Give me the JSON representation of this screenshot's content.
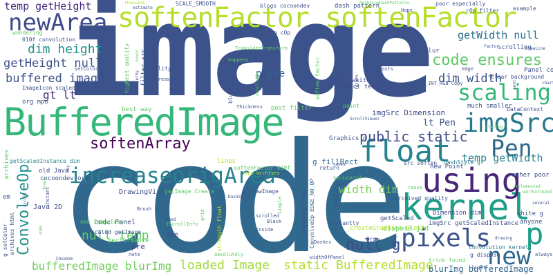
{
  "words": [
    {
      "text": "image",
      "color": "#3b528b"
    },
    {
      "text": "code",
      "color": "#31688e"
    },
    {
      "text": "softenFactor softenFactor",
      "color": "#b5de2b"
    },
    {
      "text": "BufferedImage",
      "color": "#35b779"
    },
    {
      "text": "increaseorigArea",
      "color": "#26828e"
    },
    {
      "text": "kernel",
      "color": "#1f9e89"
    },
    {
      "text": "newArea",
      "color": "#3e4a89"
    },
    {
      "text": "float",
      "color": "#26828e"
    },
    {
      "text": "imgSrc",
      "color": "#2a788e"
    },
    {
      "text": "scaling",
      "color": "#35b779"
    },
    {
      "text": "using",
      "color": "#482878"
    },
    {
      "text": "pixels",
      "color": "#3b528b"
    },
    {
      "text": "new",
      "color": "#31688e"
    },
    {
      "text": "p",
      "color": "#1f9e89"
    },
    {
      "text": "softenArray",
      "color": "#440154"
    },
    {
      "text": "Pen",
      "color": "#31688e"
    },
    {
      "text": "ConvolveOp",
      "color": "#21918c"
    },
    {
      "text": "public static",
      "color": "#3e4a89"
    },
    {
      "text": "getHeight null",
      "color": "#3b528b"
    },
    {
      "text": "temp getHeight",
      "color": "#472d7b"
    },
    {
      "text": "buffered image",
      "color": "#3b528b"
    },
    {
      "text": "dim height",
      "color": "#21918c"
    },
    {
      "text": "code ensures",
      "color": "#5ec962"
    },
    {
      "text": "getWidth null",
      "color": "#2c728e"
    },
    {
      "text": "dim width",
      "color": "#3b528b"
    },
    {
      "text": "temp getWidth",
      "color": "#26828e"
    },
    {
      "text": "null temp",
      "color": "#5ec962"
    },
    {
      "text": "width dim",
      "color": "#7ad151"
    },
    {
      "text": "bufferedImage blurImg",
      "color": "#6ece58"
    },
    {
      "text": "loaded Image",
      "color": "#a0da39"
    },
    {
      "text": "static BufferedImage",
      "color": "#b5de2b"
    },
    {
      "text": "blurImg bufferedImage",
      "color": "#31688e"
    },
    {
      "text": "null g",
      "color": "#3e4a89"
    },
    {
      "text": "gt lt",
      "color": "#482878"
    },
    {
      "text": "lt Pen",
      "color": "#3b528b"
    },
    {
      "text": "p pre",
      "color": "#31688e"
    },
    {
      "text": "code Panel",
      "color": "#3e4a89"
    },
    {
      "text": "DrawingVisual",
      "color": "#3b528b"
    },
    {
      "text": "imgSrc Dimension",
      "color": "#3e4a89"
    },
    {
      "text": "Panel code",
      "color": "#3e4a89"
    },
    {
      "text": "g fillRect",
      "color": "#31688e"
    },
    {
      "text": "Java 2D",
      "color": "#3e4a89"
    },
    {
      "text": "pre",
      "color": "#3e4a89"
    },
    {
      "text": "use",
      "color": "#3e4a89"
    },
    {
      "text": "Color white",
      "color": "#3e4a89"
    },
    {
      "text": "fillRect temp",
      "color": "#3e4a89"
    },
    {
      "text": "Graphics g",
      "color": "#3b528b"
    },
    {
      "text": "dispose j2d",
      "color": "#5ec962"
    },
    {
      "text": "Dimension dim",
      "color": "#3e4a89"
    },
    {
      "text": "old Java",
      "color": "#3e4a89"
    },
    {
      "text": "archives",
      "color": "#5ec962"
    },
    {
      "text": "cocoondev org",
      "color": "#3b528b"
    },
    {
      "text": "getScaledInstance dim",
      "color": "#26828e"
    },
    {
      "text": "getScaled",
      "color": "#3b528b"
    },
    {
      "text": "new Point",
      "color": "#3b528b"
    },
    {
      "text": "rather poor",
      "color": "#3b528b"
    },
    {
      "text": "white g",
      "color": "#3b528b"
    },
    {
      "text": "anyone",
      "color": "#3b528b"
    },
    {
      "text": "imgSrc getScaledInstance",
      "color": "#3b528b"
    },
    {
      "text": "convolution kernel",
      "color": "#2a788e"
    },
    {
      "text": "src soften",
      "color": "#3b528b"
    },
    {
      "text": "DashStyle g",
      "color": "#2a788e"
    },
    {
      "text": "much smaller",
      "color": "#3b528b"
    },
    {
      "text": "DataContext",
      "color": "#3b528b"
    },
    {
      "text": "createGraphics Clear",
      "color": "#b5de2b"
    },
    {
      "text": "scaled getImage",
      "color": "#3b528b"
    },
    {
      "text": "new ImageIcon",
      "color": "#5ec962"
    },
    {
      "text": "performance",
      "color": "#5ec962"
    },
    {
      "text": "trick found",
      "color": "#5ec962"
    },
    {
      "text": "g dispose",
      "color": "#3b528b"
    },
    {
      "text": "insane",
      "color": "#3b528b"
    },
    {
      "text": "widthOfPanel",
      "color": "#3b528b"
    },
    {
      "text": "Draw",
      "color": "#3b528b"
    },
    {
      "text": "Dashes",
      "color": "#3b528b"
    },
    {
      "text": "instantly",
      "color": "#3b528b"
    },
    {
      "text": "perceived quality",
      "color": "#3b528b"
    },
    {
      "text": "return",
      "color": "#3b528b"
    },
    {
      "text": "want",
      "color": "#3b528b"
    },
    {
      "text": "reuse",
      "color": "#5ec962"
    },
    {
      "text": "paint",
      "color": "#5ec962"
    },
    {
      "text": "best way",
      "color": "#5ec962"
    },
    {
      "text": "post filter",
      "color": "#5ec962"
    },
    {
      "text": "Thickness",
      "color": "#3b528b"
    },
    {
      "text": "org mpo",
      "color": "#3b528b"
    },
    {
      "text": "quality",
      "color": "#3b528b"
    },
    {
      "text": "decreased",
      "color": "#3b528b"
    },
    {
      "text": "ImageIcon scaled",
      "color": "#3b528b"
    },
    {
      "text": "setColor Color",
      "color": "#3b528b"
    },
    {
      "text": "010f convolution",
      "color": "#3b528b"
    },
    {
      "text": "wondering",
      "color": "#5ec962"
    },
    {
      "text": "return cOp",
      "color": "#3b528b"
    },
    {
      "text": "SCALE_SMOOTH",
      "color": "#3b528b"
    },
    {
      "text": "blogs cocoondev",
      "color": "#3b528b"
    },
    {
      "text": "dash pattern",
      "color": "#3b528b"
    },
    {
      "text": "poor especially",
      "color": "#3b528b"
    },
    {
      "text": "cOp filter",
      "color": "#3b528b"
    },
    {
      "text": "example",
      "color": "#3b528b"
    },
    {
      "text": "Hope",
      "color": "#3b528b"
    },
    {
      "text": "estimate",
      "color": "#3b528b"
    },
    {
      "text": "thousand",
      "color": "#b5de2b"
    },
    {
      "text": "PenUsingDashPatterns",
      "color": "#5ec962"
    },
    {
      "text": "TranslateTransform",
      "color": "#5ec962"
    },
    {
      "text": "blur",
      "color": "#3b528b"
    },
    {
      "text": "scrolling",
      "color": "#3b528b"
    },
    {
      "text": "DrawLine",
      "color": "#3b528b"
    },
    {
      "text": "Clear background",
      "color": "#3b528b"
    },
    {
      "text": "TYPE_INT_RGB Copy",
      "color": "#3b528b"
    },
    {
      "text": "hosts",
      "color": "#3b528b"
    },
    {
      "text": "edge",
      "color": "#3b528b"
    },
    {
      "text": "factor",
      "color": "#3b528b"
    },
    {
      "text": "chart",
      "color": "#3b528b"
    },
    {
      "text": "sent",
      "color": "#3b528b"
    },
    {
      "text": "happens",
      "color": "#5ec962"
    },
    {
      "text": "softenFactor 010f",
      "color": "#5ec962"
    },
    {
      "text": "lines",
      "color": "#b5de2b"
    },
    {
      "text": "ScrollViewer",
      "color": "#3b528b"
    },
    {
      "text": "seems",
      "color": "#3b528b"
    },
    {
      "text": "placing",
      "color": "#5ec962"
    },
    {
      "text": "return",
      "color": "#3b528b"
    },
    {
      "text": "Brush",
      "color": "#3b528b"
    },
    {
      "text": "getImage Create",
      "color": "#5ec962"
    },
    {
      "text": "mpo archives",
      "color": "#b5de2b"
    },
    {
      "text": "g drawImage",
      "color": "#3b528b"
    },
    {
      "text": "DashStyle",
      "color": "#3b528b"
    },
    {
      "text": "horizontal",
      "color": "#5ec962"
    },
    {
      "text": "IScrollInfo",
      "color": "#5ec962"
    },
    {
      "text": "shed",
      "color": "#3b528b"
    },
    {
      "text": "scrolled",
      "color": "#3b528b"
    },
    {
      "text": "Black",
      "color": "#3b528b"
    },
    {
      "text": "inside",
      "color": "#3b528b"
    },
    {
      "text": "note",
      "color": "#3b528b"
    },
    {
      "text": "absolutely",
      "color": "#5ec962"
    },
    {
      "text": "several",
      "color": "#3b528b"
    },
    {
      "text": "workaround",
      "color": "#5ec962"
    },
    {
      "text": "drawing",
      "color": "#3b528b"
    },
    {
      "text": "always",
      "color": "#3b528b"
    },
    {
      "text": "light",
      "color": "#3b528b"
    },
    {
      "text": "implemented",
      "color": "#5ec962"
    },
    {
      "text": "em",
      "color": "#3b528b"
    },
    {
      "text": "g setColor",
      "color": "#3b528b"
    },
    {
      "text": "archives html",
      "color": "#3b528b"
    },
    {
      "text": "one",
      "color": "#5ec962"
    },
    {
      "text": "instant",
      "color": "#3b528b"
    },
    {
      "text": "drawn",
      "color": "#5ec962"
    },
    {
      "text": "key",
      "color": "#3b528b"
    },
    {
      "text": "scroll",
      "color": "#3b528b"
    },
    {
      "text": "filter src",
      "color": "#3b528b"
    },
    {
      "text": "highest quality",
      "color": "#5ec962"
    },
    {
      "text": "never",
      "color": "#5ec962"
    },
    {
      "text": "jerky",
      "color": "#3b528b"
    },
    {
      "text": "smaller size",
      "color": "#3b528b"
    },
    {
      "text": "soften factor",
      "color": "#5ec962"
    },
    {
      "text": "blur strength",
      "color": "#3b528b"
    },
    {
      "text": "scrollable",
      "color": "#5ec962"
    },
    {
      "text": "strength float",
      "color": "#b5de2b"
    },
    {
      "text": "drawImage temp",
      "color": "#3b528b"
    },
    {
      "text": "ConvolveOp EDGE_NO_OP",
      "color": "#31688e"
    },
    {
      "text": "explain",
      "color": "#3b528b"
    },
    {
      "text": "grid",
      "color": "#5ec962"
    },
    {
      "text": "simple",
      "color": "#5ec962"
    },
    {
      "text": "top",
      "color": "#3b528b"
    }
  ]
}
